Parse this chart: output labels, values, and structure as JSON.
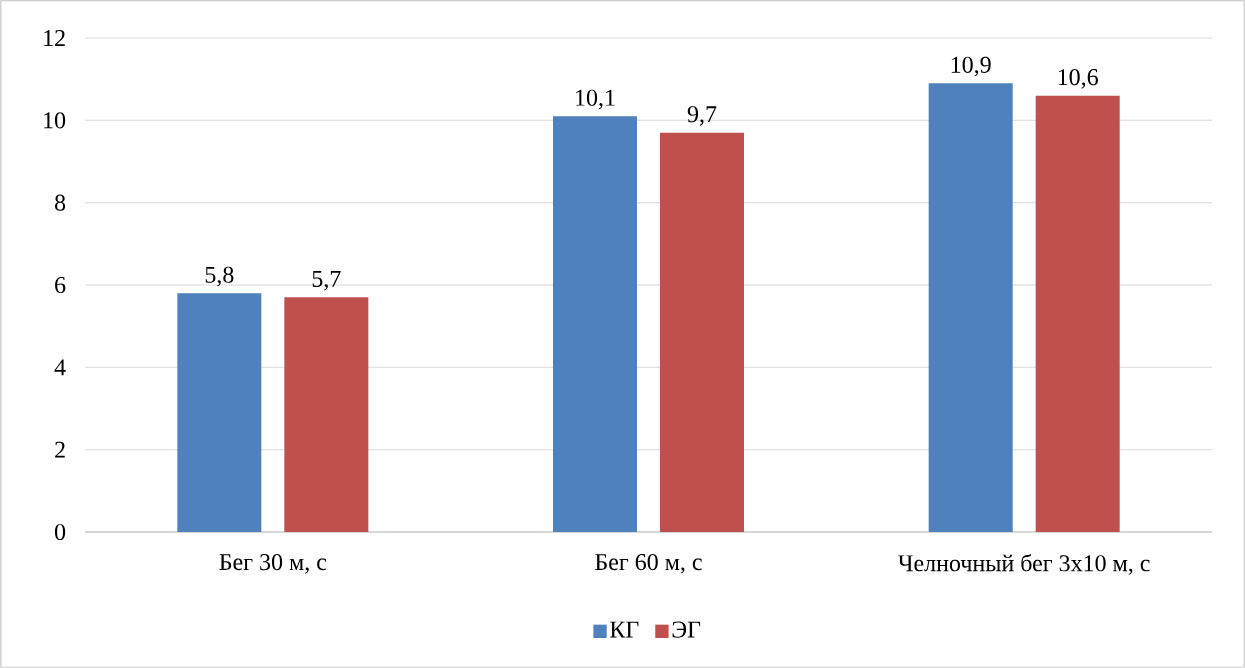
{
  "chart_data": {
    "type": "bar",
    "categories": [
      "Бег 30 м, с",
      "Бег 60 м, с",
      "Челночный бег 3х10 м, с"
    ],
    "series": [
      {
        "name": "КГ",
        "color": "#4f81bd",
        "values": [
          5.8,
          10.1,
          10.9
        ],
        "value_labels": [
          "5,8",
          "10,1",
          "10,9"
        ]
      },
      {
        "name": "ЭГ",
        "color": "#c0504d",
        "values": [
          5.7,
          9.7,
          10.6
        ],
        "value_labels": [
          "5,7",
          "9,7",
          "10,6"
        ]
      }
    ],
    "ylim": [
      0,
      12
    ],
    "yticks": [
      0,
      2,
      4,
      6,
      8,
      10,
      12
    ],
    "grid": "y",
    "legend": "bottom"
  }
}
